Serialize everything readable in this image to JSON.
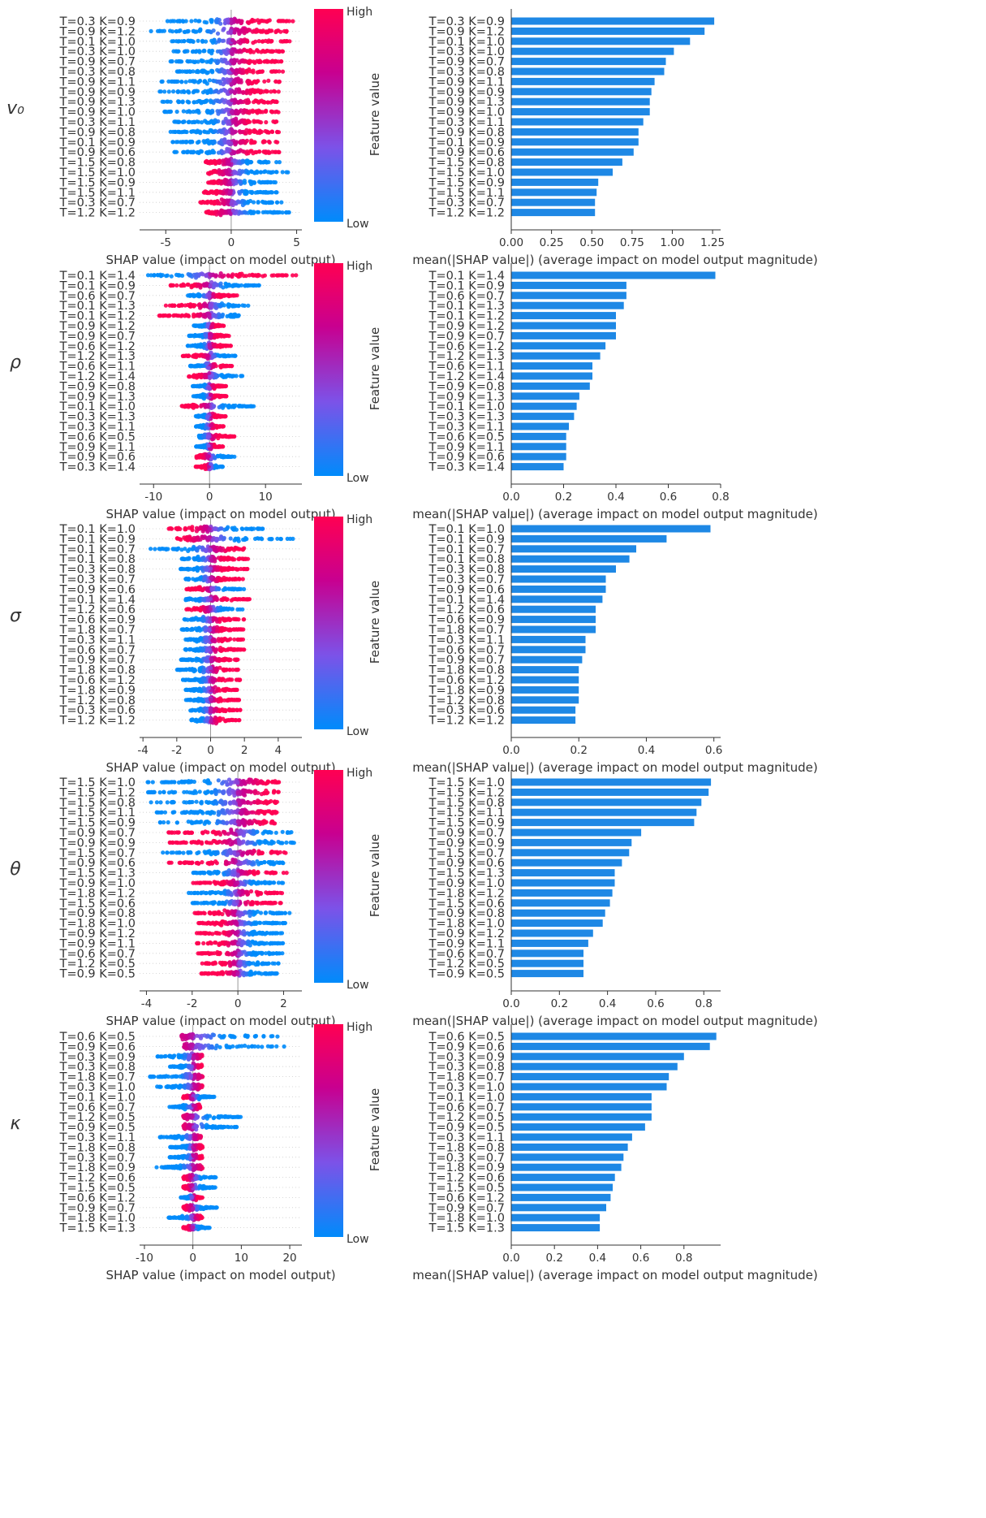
{
  "colorbar": {
    "high_label": "High",
    "low_label": "Low",
    "title": "Feature value",
    "colors": [
      "#008bfb",
      "#7c52e8",
      "#c80090",
      "#ff0052"
    ]
  },
  "colors": {
    "bar": "#1e88e5",
    "axis": "#333333",
    "grid": "#cccccc"
  },
  "chart_data": [
    {
      "type": "scatter",
      "parameter": "v₀",
      "title": "",
      "xlabel": "SHAP value (impact on model output)",
      "xlim": [
        -7,
        5.4
      ],
      "xticks": [
        -5,
        0,
        5
      ],
      "features": [
        "T=0.3 K=0.9",
        "T=0.9 K=1.2",
        "T=0.1 K=1.0",
        "T=0.3 K=1.0",
        "T=0.9 K=0.7",
        "T=0.3 K=0.8",
        "T=0.9 K=1.1",
        "T=0.9 K=0.9",
        "T=0.9 K=1.3",
        "T=0.9 K=1.0",
        "T=0.3 K=1.1",
        "T=0.9 K=0.8",
        "T=0.1 K=0.9",
        "T=0.9 K=0.6",
        "T=1.5 K=0.8",
        "T=1.5 K=1.0",
        "T=1.5 K=0.9",
        "T=1.5 K=1.1",
        "T=0.3 K=0.7",
        "T=1.2 K=1.2"
      ],
      "ranges": [
        [
          -5,
          5
        ],
        [
          -6.7,
          4.5
        ],
        [
          -4.8,
          4.6
        ],
        [
          -4.5,
          4
        ],
        [
          -4.8,
          4
        ],
        [
          -4.3,
          4
        ],
        [
          -5.4,
          3.7
        ],
        [
          -5.6,
          3.7
        ],
        [
          -5.5,
          3.7
        ],
        [
          -5.4,
          3.7
        ],
        [
          -4.5,
          3.7
        ],
        [
          -4.8,
          3.7
        ],
        [
          -4.9,
          3.7
        ],
        [
          -4.6,
          3.7
        ],
        [
          -2,
          3.8
        ],
        [
          -1.8,
          4.4
        ],
        [
          -1.8,
          3.5
        ],
        [
          -2.1,
          3.7
        ],
        [
          -2.5,
          3.9
        ],
        [
          -2,
          4.7
        ]
      ],
      "high_side": [
        1,
        1,
        1,
        1,
        1,
        1,
        1,
        1,
        1,
        1,
        1,
        1,
        1,
        1,
        -1,
        -1,
        -1,
        -1,
        -1,
        -1
      ]
    },
    {
      "type": "bar",
      "parameter": "v₀",
      "xlabel": "mean(|SHAP value|) (average impact on model output magnitude)",
      "xlim": [
        0,
        1.3
      ],
      "xticks": [
        "0.00",
        "0.25",
        "0.50",
        "0.75",
        "1.00",
        "1.25"
      ],
      "features": [
        "T=0.3 K=0.9",
        "T=0.9 K=1.2",
        "T=0.1 K=1.0",
        "T=0.3 K=1.0",
        "T=0.9 K=0.7",
        "T=0.3 K=0.8",
        "T=0.9 K=1.1",
        "T=0.9 K=0.9",
        "T=0.9 K=1.3",
        "T=0.9 K=1.0",
        "T=0.3 K=1.1",
        "T=0.9 K=0.8",
        "T=0.1 K=0.9",
        "T=0.9 K=0.6",
        "T=1.5 K=0.8",
        "T=1.5 K=1.0",
        "T=1.5 K=0.9",
        "T=1.5 K=1.1",
        "T=0.3 K=0.7",
        "T=1.2 K=1.2"
      ],
      "values": [
        1.26,
        1.2,
        1.11,
        1.01,
        0.96,
        0.95,
        0.89,
        0.87,
        0.86,
        0.86,
        0.82,
        0.79,
        0.79,
        0.76,
        0.69,
        0.63,
        0.54,
        0.53,
        0.52,
        0.52
      ]
    },
    {
      "type": "scatter",
      "parameter": "ρ",
      "xlabel": "SHAP value (impact on model output)",
      "xlim": [
        -12.5,
        16.5
      ],
      "xticks": [
        -10,
        0,
        10
      ],
      "features": [
        "T=0.1 K=1.4",
        "T=0.1 K=0.9",
        "T=0.6 K=0.7",
        "T=0.1 K=1.3",
        "T=0.1 K=1.2",
        "T=0.9 K=1.2",
        "T=0.9 K=0.7",
        "T=0.6 K=1.2",
        "T=1.2 K=1.3",
        "T=0.6 K=1.1",
        "T=1.2 K=1.4",
        "T=0.9 K=0.8",
        "T=0.9 K=1.3",
        "T=0.1 K=1.0",
        "T=0.3 K=1.3",
        "T=0.3 K=1.1",
        "T=0.6 K=0.5",
        "T=0.9 K=1.1",
        "T=0.9 K=0.6",
        "T=0.3 K=1.4"
      ],
      "ranges": [
        [
          -11,
          16
        ],
        [
          -7,
          9
        ],
        [
          -4,
          5
        ],
        [
          -8,
          7
        ],
        [
          -9,
          5.5
        ],
        [
          -3,
          3
        ],
        [
          -4,
          3.5
        ],
        [
          -4,
          4
        ],
        [
          -5,
          5
        ],
        [
          -3.5,
          4
        ],
        [
          -4,
          6
        ],
        [
          -3,
          3
        ],
        [
          -3,
          3
        ],
        [
          -5,
          8
        ],
        [
          -2.5,
          3
        ],
        [
          -2.5,
          3
        ],
        [
          -2,
          4.5
        ],
        [
          -2.5,
          2.5
        ],
        [
          -2.5,
          4.5
        ],
        [
          -2.5,
          2.5
        ]
      ],
      "high_side": [
        1,
        -1,
        1,
        -1,
        -1,
        1,
        1,
        1,
        -1,
        1,
        -1,
        1,
        1,
        -1,
        1,
        1,
        1,
        1,
        -1,
        -1
      ]
    },
    {
      "type": "bar",
      "parameter": "ρ",
      "xlabel": "mean(|SHAP value|) (average impact on model output magnitude)",
      "xlim": [
        0,
        0.8
      ],
      "xticks": [
        "0.0",
        "0.2",
        "0.4",
        "0.6",
        "0.8"
      ],
      "features": [
        "T=0.1 K=1.4",
        "T=0.1 K=0.9",
        "T=0.6 K=0.7",
        "T=0.1 K=1.3",
        "T=0.1 K=1.2",
        "T=0.9 K=1.2",
        "T=0.9 K=0.7",
        "T=0.6 K=1.2",
        "T=1.2 K=1.3",
        "T=0.6 K=1.1",
        "T=1.2 K=1.4",
        "T=0.9 K=0.8",
        "T=0.9 K=1.3",
        "T=0.1 K=1.0",
        "T=0.3 K=1.3",
        "T=0.3 K=1.1",
        "T=0.6 K=0.5",
        "T=0.9 K=1.1",
        "T=0.9 K=0.6",
        "T=0.3 K=1.4"
      ],
      "values": [
        0.78,
        0.44,
        0.44,
        0.43,
        0.4,
        0.4,
        0.4,
        0.36,
        0.34,
        0.31,
        0.31,
        0.3,
        0.26,
        0.25,
        0.24,
        0.22,
        0.21,
        0.21,
        0.21,
        0.2
      ]
    },
    {
      "type": "scatter",
      "parameter": "σ",
      "xlabel": "SHAP value (impact on model output)",
      "xlim": [
        -4.2,
        5.4
      ],
      "xticks": [
        -4,
        -2,
        0,
        2,
        4
      ],
      "features": [
        "T=0.1 K=1.0",
        "T=0.1 K=0.9",
        "T=0.1 K=0.7",
        "T=0.1 K=0.8",
        "T=0.3 K=0.8",
        "T=0.3 K=0.7",
        "T=0.9 K=0.6",
        "T=0.1 K=1.4",
        "T=1.2 K=0.6",
        "T=0.6 K=0.9",
        "T=1.8 K=0.7",
        "T=0.3 K=1.1",
        "T=0.6 K=0.7",
        "T=0.9 K=0.7",
        "T=1.8 K=0.8",
        "T=0.6 K=1.2",
        "T=1.8 K=0.9",
        "T=1.2 K=0.8",
        "T=0.3 K=0.6",
        "T=1.2 K=1.2"
      ],
      "ranges": [
        [
          -2.5,
          3.5
        ],
        [
          -2,
          5
        ],
        [
          -3.7,
          2
        ],
        [
          -1.7,
          2.3
        ],
        [
          -1.8,
          2.2
        ],
        [
          -1.5,
          2
        ],
        [
          -1.5,
          2
        ],
        [
          -1.5,
          2.4
        ],
        [
          -1.5,
          2
        ],
        [
          -1.6,
          2
        ],
        [
          -1.7,
          2
        ],
        [
          -1.5,
          2
        ],
        [
          -1.5,
          2
        ],
        [
          -2,
          1.8
        ],
        [
          -2,
          1.8
        ],
        [
          -1.7,
          1.8
        ],
        [
          -1.5,
          1.8
        ],
        [
          -1.5,
          1.7
        ],
        [
          -1.2,
          1.8
        ],
        [
          -1.2,
          1.7
        ]
      ],
      "high_side": [
        -1,
        -1,
        1,
        1,
        1,
        1,
        -1,
        1,
        -1,
        1,
        1,
        1,
        1,
        1,
        1,
        1,
        1,
        1,
        1,
        1
      ]
    },
    {
      "type": "bar",
      "parameter": "σ",
      "xlabel": "mean(|SHAP value|) (average impact on model output magnitude)",
      "xlim": [
        0,
        0.62
      ],
      "xticks": [
        "0.0",
        "0.2",
        "0.4",
        "0.6"
      ],
      "features": [
        "T=0.1 K=1.0",
        "T=0.1 K=0.9",
        "T=0.1 K=0.7",
        "T=0.1 K=0.8",
        "T=0.3 K=0.8",
        "T=0.3 K=0.7",
        "T=0.9 K=0.6",
        "T=0.1 K=1.4",
        "T=1.2 K=0.6",
        "T=0.6 K=0.9",
        "T=1.8 K=0.7",
        "T=0.3 K=1.1",
        "T=0.6 K=0.7",
        "T=0.9 K=0.7",
        "T=1.8 K=0.8",
        "T=0.6 K=1.2",
        "T=1.8 K=0.9",
        "T=1.2 K=0.8",
        "T=0.3 K=0.6",
        "T=1.2 K=1.2"
      ],
      "values": [
        0.59,
        0.46,
        0.37,
        0.35,
        0.31,
        0.28,
        0.28,
        0.27,
        0.25,
        0.25,
        0.25,
        0.22,
        0.22,
        0.21,
        0.2,
        0.2,
        0.2,
        0.2,
        0.19,
        0.19
      ]
    },
    {
      "type": "scatter",
      "parameter": "θ",
      "xlabel": "SHAP value (impact on model output)",
      "xlim": [
        -4.3,
        2.8
      ],
      "xticks": [
        -4,
        -2,
        0,
        2
      ],
      "features": [
        "T=1.5 K=1.0",
        "T=1.5 K=1.2",
        "T=1.5 K=0.8",
        "T=1.5 K=1.1",
        "T=1.5 K=0.9",
        "T=0.9 K=0.7",
        "T=0.9 K=0.9",
        "T=1.5 K=0.7",
        "T=0.9 K=0.6",
        "T=1.5 K=1.3",
        "T=0.9 K=1.0",
        "T=1.8 K=1.2",
        "T=1.5 K=0.6",
        "T=0.9 K=0.8",
        "T=1.8 K=1.0",
        "T=0.9 K=1.2",
        "T=0.9 K=1.1",
        "T=0.6 K=0.7",
        "T=1.2 K=0.5",
        "T=0.9 K=0.5"
      ],
      "ranges": [
        [
          -4,
          1.8
        ],
        [
          -4,
          1.8
        ],
        [
          -3.8,
          1.8
        ],
        [
          -3.6,
          1.7
        ],
        [
          -3.6,
          1.7
        ],
        [
          -3.2,
          2.5
        ],
        [
          -3.2,
          2.5
        ],
        [
          -3.4,
          2.2
        ],
        [
          -3.2,
          2
        ],
        [
          -2,
          2.2
        ],
        [
          -2,
          2
        ],
        [
          -2.2,
          2
        ],
        [
          -2,
          2
        ],
        [
          -2,
          2.3
        ],
        [
          -1.8,
          2.2
        ],
        [
          -1.8,
          2
        ],
        [
          -1.8,
          2
        ],
        [
          -1.8,
          2
        ],
        [
          -1.6,
          1.8
        ],
        [
          -1.6,
          1.8
        ]
      ],
      "high_side": [
        1,
        1,
        1,
        1,
        1,
        -1,
        -1,
        1,
        -1,
        1,
        -1,
        1,
        1,
        -1,
        -1,
        -1,
        -1,
        -1,
        -1,
        -1
      ]
    },
    {
      "type": "bar",
      "parameter": "θ",
      "xlabel": "mean(|SHAP value|) (average impact on model output magnitude)",
      "xlim": [
        0,
        0.87
      ],
      "xticks": [
        "0.0",
        "0.2",
        "0.4",
        "0.6",
        "0.8"
      ],
      "features": [
        "T=1.5 K=1.0",
        "T=1.5 K=1.2",
        "T=1.5 K=0.8",
        "T=1.5 K=1.1",
        "T=1.5 K=0.9",
        "T=0.9 K=0.7",
        "T=0.9 K=0.9",
        "T=1.5 K=0.7",
        "T=0.9 K=0.6",
        "T=1.5 K=1.3",
        "T=0.9 K=1.0",
        "T=1.8 K=1.2",
        "T=1.5 K=0.6",
        "T=0.9 K=0.8",
        "T=1.8 K=1.0",
        "T=0.9 K=1.2",
        "T=0.9 K=1.1",
        "T=0.6 K=0.7",
        "T=1.2 K=0.5",
        "T=0.9 K=0.5"
      ],
      "values": [
        0.83,
        0.82,
        0.79,
        0.77,
        0.76,
        0.54,
        0.5,
        0.49,
        0.46,
        0.43,
        0.43,
        0.42,
        0.41,
        0.39,
        0.38,
        0.34,
        0.32,
        0.3,
        0.3,
        0.3
      ]
    },
    {
      "type": "scatter",
      "parameter": "κ",
      "xlabel": "SHAP value (impact on model output)",
      "xlim": [
        -11,
        22.5
      ],
      "xticks": [
        -10,
        0,
        10,
        20
      ],
      "features": [
        "T=0.6 K=0.5",
        "T=0.9 K=0.6",
        "T=0.3 K=0.9",
        "T=0.3 K=0.8",
        "T=1.8 K=0.7",
        "T=0.3 K=1.0",
        "T=0.1 K=1.0",
        "T=0.6 K=0.7",
        "T=1.2 K=0.5",
        "T=0.9 K=0.5",
        "T=0.3 K=1.1",
        "T=1.8 K=0.8",
        "T=0.3 K=0.7",
        "T=1.8 K=0.9",
        "T=1.2 K=0.6",
        "T=1.5 K=0.5",
        "T=0.6 K=1.2",
        "T=0.9 K=0.7",
        "T=1.8 K=1.0",
        "T=1.5 K=1.3"
      ],
      "ranges": [
        [
          -2.5,
          21
        ],
        [
          -2,
          19
        ],
        [
          -7.5,
          2
        ],
        [
          -5,
          2
        ],
        [
          -9,
          2
        ],
        [
          -7.5,
          2
        ],
        [
          -2,
          4.5
        ],
        [
          -5,
          1.5
        ],
        [
          -2,
          10
        ],
        [
          -2,
          9.5
        ],
        [
          -7,
          2
        ],
        [
          -5,
          2
        ],
        [
          -5,
          2
        ],
        [
          -8,
          2
        ],
        [
          -2,
          5
        ],
        [
          -2,
          5
        ],
        [
          -2.5,
          2
        ],
        [
          -2,
          5
        ],
        [
          -5,
          2
        ],
        [
          -2,
          3.5
        ]
      ],
      "high_side": [
        -1,
        -1,
        1,
        1,
        1,
        1,
        -1,
        1,
        -1,
        -1,
        1,
        1,
        1,
        1,
        -1,
        -1,
        1,
        -1,
        1,
        -1
      ]
    },
    {
      "type": "bar",
      "parameter": "κ",
      "xlabel": "mean(|SHAP value|) (average impact on model output magnitude)",
      "xlim": [
        0,
        0.97
      ],
      "xticks": [
        "0.0",
        "0.2",
        "0.4",
        "0.6",
        "0.8"
      ],
      "features": [
        "T=0.6 K=0.5",
        "T=0.9 K=0.6",
        "T=0.3 K=0.9",
        "T=0.3 K=0.8",
        "T=1.8 K=0.7",
        "T=0.3 K=1.0",
        "T=0.1 K=1.0",
        "T=0.6 K=0.7",
        "T=1.2 K=0.5",
        "T=0.9 K=0.5",
        "T=0.3 K=1.1",
        "T=1.8 K=0.8",
        "T=0.3 K=0.7",
        "T=1.8 K=0.9",
        "T=1.2 K=0.6",
        "T=1.5 K=0.5",
        "T=0.6 K=1.2",
        "T=0.9 K=0.7",
        "T=1.8 K=1.0",
        "T=1.5 K=1.3"
      ],
      "values": [
        0.95,
        0.92,
        0.8,
        0.77,
        0.73,
        0.72,
        0.65,
        0.65,
        0.65,
        0.62,
        0.56,
        0.54,
        0.52,
        0.51,
        0.48,
        0.47,
        0.46,
        0.44,
        0.41,
        0.41
      ]
    }
  ]
}
